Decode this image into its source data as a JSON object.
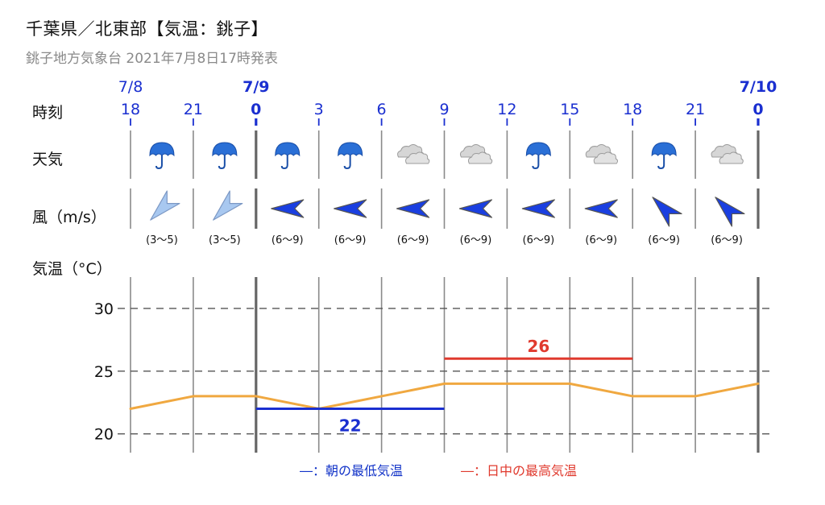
{
  "header": {
    "title": "千葉県／北東部【気温：銚子】",
    "subtitle": "銚子地方気象台 2021年7月8日17時発表"
  },
  "row_labels": {
    "time": "時刻",
    "weather": "天気",
    "wind": "風（m/s）",
    "temp": "気温（°C）"
  },
  "colors": {
    "accent_blue": "#1a2fd0",
    "low_line": "#1a2fd0",
    "high_line": "#e03a2e",
    "temp_line": "#f0a840",
    "grid": "#777777",
    "umbrella": "#2a6fd6",
    "cloud": "#c8c8c8",
    "wind_light": "#a8c8f0",
    "wind_strong": "#1a3fe0"
  },
  "chart_data": {
    "type": "line",
    "title": "",
    "x_hours": [
      18,
      21,
      0,
      3,
      6,
      9,
      12,
      15,
      18,
      21,
      0
    ],
    "date_labels": [
      {
        "index": 0,
        "text": "7/8",
        "bold": false
      },
      {
        "index": 2,
        "text": "7/9",
        "bold": true
      },
      {
        "index": 10,
        "text": "7/10",
        "bold": true
      }
    ],
    "weather": [
      "rain",
      "rain",
      "rain",
      "rain",
      "cloudy",
      "cloudy",
      "rain",
      "cloudy",
      "rain",
      "cloudy"
    ],
    "wind": [
      {
        "dir": "NE",
        "range": "(3～5)",
        "strength": "light"
      },
      {
        "dir": "NE",
        "range": "(3～5)",
        "strength": "light"
      },
      {
        "dir": "E",
        "range": "(6～9)",
        "strength": "strong"
      },
      {
        "dir": "E",
        "range": "(6～9)",
        "strength": "strong"
      },
      {
        "dir": "E",
        "range": "(6～9)",
        "strength": "strong"
      },
      {
        "dir": "E",
        "range": "(6～9)",
        "strength": "strong"
      },
      {
        "dir": "E",
        "range": "(6～9)",
        "strength": "strong"
      },
      {
        "dir": "E",
        "range": "(6～9)",
        "strength": "strong"
      },
      {
        "dir": "SE",
        "range": "(6～9)",
        "strength": "strong"
      },
      {
        "dir": "SE",
        "range": "(6～9)",
        "strength": "strong"
      }
    ],
    "temperature": {
      "series": [
        {
          "values": [
            22,
            23,
            23,
            22,
            23,
            24,
            24,
            24,
            23,
            23,
            24
          ]
        }
      ],
      "yticks": [
        20,
        25,
        30
      ],
      "ylim": [
        18.5,
        32.5
      ],
      "grid": true
    },
    "min_temp": {
      "value": 22,
      "label": "22",
      "from_index": 2,
      "to_index": 5
    },
    "max_temp": {
      "value": 26,
      "label": "26",
      "from_index": 5,
      "to_index": 8
    }
  },
  "legend": {
    "low": "―：朝の最低気温",
    "high": "―：日中の最高気温"
  }
}
